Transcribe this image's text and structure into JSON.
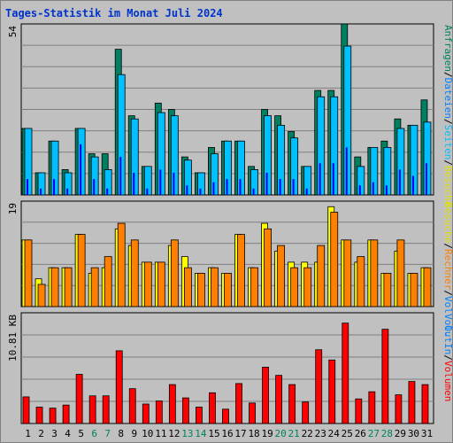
{
  "title": "Tages-Statistik im Monat Juli 2024",
  "colors": {
    "hits": "#008060",
    "files": "#00c0ff",
    "pages": "#0000ff",
    "visits": "#ffff00",
    "sites": "#ff8000",
    "kbytes": "#ff0000",
    "weekend_label": "#008060",
    "grid": "#808080"
  },
  "chart_data": [
    {
      "type": "bar",
      "ylabel_max": "54",
      "categories": [
        "1",
        "2",
        "3",
        "4",
        "5",
        "6",
        "7",
        "8",
        "9",
        "10",
        "11",
        "12",
        "13",
        "14",
        "15",
        "16",
        "17",
        "18",
        "19",
        "20",
        "21",
        "22",
        "23",
        "24",
        "25",
        "26",
        "27",
        "28",
        "29",
        "30",
        "31"
      ],
      "weekend_days": [
        "6",
        "7",
        "13",
        "14",
        "20",
        "21",
        "27",
        "28"
      ],
      "side_legend": [
        {
          "text": "Anfragen",
          "color": "#008060"
        },
        {
          "text": "/",
          "color": "#000000"
        },
        {
          "text": "Dateien",
          "color": "#0080ff"
        },
        {
          "text": "/",
          "color": "#000000"
        },
        {
          "text": "Seiten",
          "color": "#00c0ff"
        },
        {
          "text": "/",
          "color": "#000000"
        },
        {
          "text": "Besuche",
          "color": "#e0e000"
        }
      ],
      "series": [
        {
          "name": "Anfragen",
          "values": [
            21,
            7,
            17,
            8,
            21,
            13,
            13,
            46,
            25,
            9,
            29,
            27,
            12,
            7,
            15,
            17,
            17,
            9,
            27,
            25,
            20,
            9,
            33,
            33,
            54,
            12,
            15,
            17,
            24,
            22,
            30
          ]
        },
        {
          "name": "Dateien",
          "values": [
            21,
            7,
            17,
            7,
            21,
            12,
            8,
            38,
            24,
            9,
            26,
            25,
            11,
            7,
            13,
            17,
            17,
            8,
            25,
            22,
            18,
            9,
            31,
            31,
            47,
            9,
            15,
            15,
            21,
            22,
            23
          ]
        },
        {
          "name": "Seiten",
          "values": [
            5,
            2,
            5,
            2,
            16,
            5,
            2,
            12,
            7,
            2,
            8,
            7,
            3,
            2,
            4,
            5,
            5,
            2,
            7,
            5,
            5,
            2,
            10,
            10,
            15,
            3,
            4,
            3,
            8,
            6,
            10
          ]
        }
      ],
      "ylim": [
        0,
        54
      ]
    },
    {
      "type": "bar",
      "ylabel_max": "19",
      "side_legend": [
        {
          "text": "Besuche",
          "color": "#e0e000"
        },
        {
          "text": "/",
          "color": "#000000"
        },
        {
          "text": "Rechner",
          "color": "#ff8000"
        },
        {
          "text": "/",
          "color": "#000000"
        },
        {
          "text": "Vol. Out",
          "color": "#0080ff"
        }
      ],
      "series": [
        {
          "name": "Besuche",
          "values": [
            12,
            5,
            7,
            7,
            13,
            6,
            7,
            14,
            11,
            8,
            8,
            11,
            9,
            6,
            7,
            6,
            13,
            7,
            15,
            10,
            8,
            8,
            8,
            18,
            12,
            8,
            12,
            6,
            10,
            6,
            7
          ]
        },
        {
          "name": "Rechner",
          "values": [
            12,
            4,
            7,
            7,
            13,
            7,
            9,
            15,
            12,
            8,
            8,
            12,
            7,
            6,
            7,
            6,
            13,
            7,
            14,
            11,
            7,
            7,
            11,
            17,
            12,
            9,
            12,
            6,
            12,
            6,
            7
          ]
        }
      ],
      "ylim": [
        0,
        19
      ]
    },
    {
      "type": "bar",
      "ylabel_max": "10.81 KB",
      "side_legend": [
        {
          "text": "Vol. In",
          "color": "#0080ff"
        },
        {
          "text": "/",
          "color": "#000000"
        },
        {
          "text": "Volumen",
          "color": "#ff0000"
        }
      ],
      "series": [
        {
          "name": "Volumen",
          "values": [
            2.6,
            1.6,
            1.5,
            1.8,
            4.8,
            2.7,
            2.7,
            7.1,
            3.4,
            1.9,
            2.2,
            3.8,
            2.5,
            1.6,
            3.0,
            1.4,
            3.9,
            2.0,
            5.5,
            4.7,
            3.8,
            2.1,
            7.2,
            6.2,
            9.8,
            2.4,
            3.1,
            9.2,
            2.8,
            4.1,
            3.8
          ]
        }
      ],
      "ylim": [
        0,
        10.81
      ]
    }
  ]
}
